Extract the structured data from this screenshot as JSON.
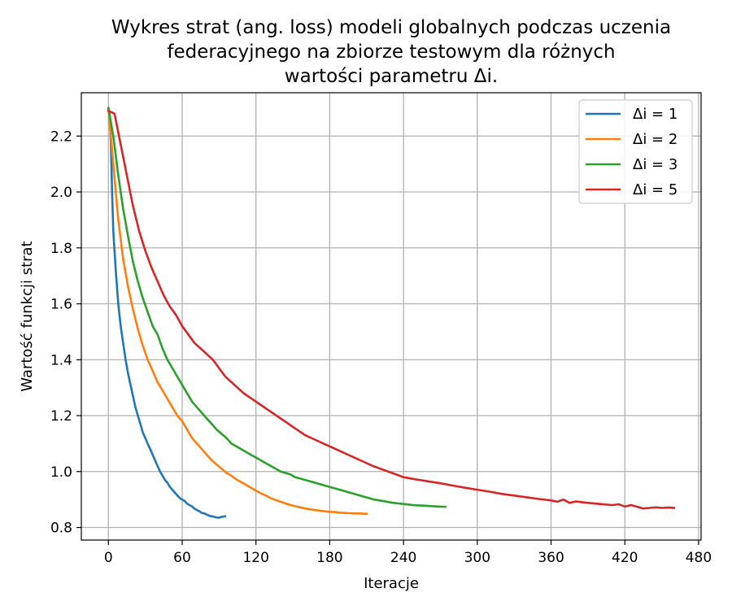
{
  "chart_data": {
    "type": "line",
    "title_lines": [
      "Wykres strat (ang. loss) modeli globalnych podczas uczenia",
      "federacyjnego na zbiorze testowym dla różnych",
      "wartości parametru Δi."
    ],
    "xlabel": "Iteracje",
    "ylabel": "Wartość funkcji strat",
    "xlim": [
      -22,
      482
    ],
    "ylim": [
      0.755,
      2.355
    ],
    "xticks": [
      0,
      60,
      120,
      180,
      240,
      300,
      360,
      420,
      480
    ],
    "yticks": [
      0.8,
      1.0,
      1.2,
      1.4,
      1.6,
      1.8,
      2.0,
      2.2
    ],
    "ytick_labels": [
      "0.8",
      "1.0",
      "1.2",
      "1.4",
      "1.6",
      "1.8",
      "2.0",
      "2.2"
    ],
    "grid": true,
    "legend_position": "top-right",
    "series": [
      {
        "name": "Δi = 1",
        "color": "#1f77b4",
        "points": [
          [
            0,
            2.3
          ],
          [
            1,
            2.28
          ],
          [
            2,
            2.18
          ],
          [
            3,
            2.0
          ],
          [
            4,
            1.86
          ],
          [
            6,
            1.72
          ],
          [
            8,
            1.6
          ],
          [
            10,
            1.52
          ],
          [
            12,
            1.46
          ],
          [
            14,
            1.4
          ],
          [
            16,
            1.35
          ],
          [
            18,
            1.31
          ],
          [
            20,
            1.27
          ],
          [
            22,
            1.23
          ],
          [
            24,
            1.2
          ],
          [
            26,
            1.17
          ],
          [
            28,
            1.14
          ],
          [
            30,
            1.12
          ],
          [
            32,
            1.1
          ],
          [
            34,
            1.08
          ],
          [
            36,
            1.06
          ],
          [
            38,
            1.04
          ],
          [
            40,
            1.02
          ],
          [
            42,
            1.0
          ],
          [
            44,
            0.985
          ],
          [
            46,
            0.97
          ],
          [
            48,
            0.96
          ],
          [
            50,
            0.945
          ],
          [
            52,
            0.935
          ],
          [
            54,
            0.925
          ],
          [
            56,
            0.915
          ],
          [
            58,
            0.905
          ],
          [
            60,
            0.9
          ],
          [
            62,
            0.895
          ],
          [
            64,
            0.885
          ],
          [
            66,
            0.88
          ],
          [
            68,
            0.875
          ],
          [
            70,
            0.868
          ],
          [
            72,
            0.862
          ],
          [
            74,
            0.858
          ],
          [
            76,
            0.852
          ],
          [
            78,
            0.85
          ],
          [
            80,
            0.846
          ],
          [
            82,
            0.842
          ],
          [
            84,
            0.84
          ],
          [
            86,
            0.838
          ],
          [
            88,
            0.836
          ],
          [
            90,
            0.835
          ],
          [
            92,
            0.838
          ],
          [
            95,
            0.84
          ]
        ]
      },
      {
        "name": "Δi = 2",
        "color": "#ff7f0e",
        "points": [
          [
            0,
            2.3
          ],
          [
            4,
            2.1
          ],
          [
            8,
            1.9
          ],
          [
            12,
            1.76
          ],
          [
            16,
            1.66
          ],
          [
            20,
            1.58
          ],
          [
            24,
            1.51
          ],
          [
            28,
            1.45
          ],
          [
            32,
            1.4
          ],
          [
            36,
            1.36
          ],
          [
            40,
            1.32
          ],
          [
            44,
            1.29
          ],
          [
            48,
            1.26
          ],
          [
            52,
            1.23
          ],
          [
            56,
            1.2
          ],
          [
            60,
            1.18
          ],
          [
            64,
            1.15
          ],
          [
            68,
            1.12
          ],
          [
            72,
            1.1
          ],
          [
            76,
            1.08
          ],
          [
            80,
            1.06
          ],
          [
            84,
            1.04
          ],
          [
            88,
            1.025
          ],
          [
            92,
            1.01
          ],
          [
            96,
            0.995
          ],
          [
            100,
            0.985
          ],
          [
            104,
            0.972
          ],
          [
            108,
            0.962
          ],
          [
            112,
            0.952
          ],
          [
            116,
            0.942
          ],
          [
            120,
            0.932
          ],
          [
            124,
            0.922
          ],
          [
            128,
            0.914
          ],
          [
            132,
            0.905
          ],
          [
            136,
            0.898
          ],
          [
            140,
            0.892
          ],
          [
            144,
            0.886
          ],
          [
            148,
            0.88
          ],
          [
            152,
            0.876
          ],
          [
            156,
            0.872
          ],
          [
            160,
            0.868
          ],
          [
            164,
            0.865
          ],
          [
            168,
            0.862
          ],
          [
            172,
            0.86
          ],
          [
            176,
            0.858
          ],
          [
            180,
            0.856
          ],
          [
            184,
            0.855
          ],
          [
            188,
            0.853
          ],
          [
            192,
            0.852
          ],
          [
            196,
            0.851
          ],
          [
            200,
            0.85
          ],
          [
            204,
            0.85
          ],
          [
            208,
            0.849
          ],
          [
            210,
            0.849
          ]
        ]
      },
      {
        "name": "Δi = 3",
        "color": "#2ca02c",
        "points": [
          [
            0,
            2.3
          ],
          [
            4,
            2.2
          ],
          [
            8,
            2.06
          ],
          [
            12,
            1.94
          ],
          [
            16,
            1.84
          ],
          [
            20,
            1.75
          ],
          [
            24,
            1.68
          ],
          [
            28,
            1.62
          ],
          [
            32,
            1.57
          ],
          [
            36,
            1.52
          ],
          [
            40,
            1.49
          ],
          [
            44,
            1.44
          ],
          [
            48,
            1.4
          ],
          [
            52,
            1.37
          ],
          [
            56,
            1.34
          ],
          [
            60,
            1.31
          ],
          [
            64,
            1.28
          ],
          [
            68,
            1.25
          ],
          [
            72,
            1.23
          ],
          [
            76,
            1.21
          ],
          [
            80,
            1.19
          ],
          [
            84,
            1.17
          ],
          [
            88,
            1.15
          ],
          [
            92,
            1.135
          ],
          [
            96,
            1.12
          ],
          [
            100,
            1.1
          ],
          [
            104,
            1.09
          ],
          [
            108,
            1.08
          ],
          [
            112,
            1.07
          ],
          [
            116,
            1.06
          ],
          [
            120,
            1.05
          ],
          [
            124,
            1.04
          ],
          [
            128,
            1.03
          ],
          [
            132,
            1.02
          ],
          [
            136,
            1.01
          ],
          [
            140,
            1.0
          ],
          [
            144,
            0.995
          ],
          [
            148,
            0.99
          ],
          [
            152,
            0.98
          ],
          [
            156,
            0.975
          ],
          [
            160,
            0.97
          ],
          [
            164,
            0.965
          ],
          [
            168,
            0.96
          ],
          [
            172,
            0.955
          ],
          [
            176,
            0.95
          ],
          [
            180,
            0.945
          ],
          [
            184,
            0.94
          ],
          [
            188,
            0.935
          ],
          [
            192,
            0.93
          ],
          [
            196,
            0.925
          ],
          [
            200,
            0.92
          ],
          [
            204,
            0.915
          ],
          [
            208,
            0.91
          ],
          [
            212,
            0.905
          ],
          [
            216,
            0.9
          ],
          [
            220,
            0.897
          ],
          [
            224,
            0.894
          ],
          [
            228,
            0.891
          ],
          [
            232,
            0.888
          ],
          [
            236,
            0.886
          ],
          [
            240,
            0.884
          ],
          [
            244,
            0.882
          ],
          [
            248,
            0.88
          ],
          [
            252,
            0.879
          ],
          [
            256,
            0.878
          ],
          [
            260,
            0.877
          ],
          [
            264,
            0.876
          ],
          [
            268,
            0.875
          ],
          [
            272,
            0.874
          ],
          [
            274,
            0.874
          ]
        ]
      },
      {
        "name": "Δi = 5",
        "color": "#d62728",
        "points": [
          [
            0,
            2.29
          ],
          [
            5,
            2.28
          ],
          [
            10,
            2.17
          ],
          [
            15,
            2.06
          ],
          [
            20,
            1.95
          ],
          [
            25,
            1.86
          ],
          [
            30,
            1.79
          ],
          [
            35,
            1.73
          ],
          [
            40,
            1.68
          ],
          [
            45,
            1.63
          ],
          [
            50,
            1.59
          ],
          [
            55,
            1.56
          ],
          [
            60,
            1.52
          ],
          [
            65,
            1.49
          ],
          [
            70,
            1.46
          ],
          [
            75,
            1.44
          ],
          [
            80,
            1.42
          ],
          [
            85,
            1.4
          ],
          [
            90,
            1.37
          ],
          [
            95,
            1.34
          ],
          [
            100,
            1.32
          ],
          [
            105,
            1.3
          ],
          [
            110,
            1.28
          ],
          [
            115,
            1.265
          ],
          [
            120,
            1.25
          ],
          [
            125,
            1.235
          ],
          [
            130,
            1.22
          ],
          [
            135,
            1.205
          ],
          [
            140,
            1.19
          ],
          [
            145,
            1.175
          ],
          [
            150,
            1.16
          ],
          [
            155,
            1.145
          ],
          [
            160,
            1.13
          ],
          [
            165,
            1.12
          ],
          [
            170,
            1.11
          ],
          [
            175,
            1.1
          ],
          [
            180,
            1.09
          ],
          [
            185,
            1.08
          ],
          [
            190,
            1.07
          ],
          [
            195,
            1.06
          ],
          [
            200,
            1.05
          ],
          [
            205,
            1.04
          ],
          [
            210,
            1.03
          ],
          [
            215,
            1.02
          ],
          [
            220,
            1.012
          ],
          [
            225,
            1.004
          ],
          [
            230,
            0.996
          ],
          [
            235,
            0.988
          ],
          [
            240,
            0.98
          ],
          [
            250,
            0.972
          ],
          [
            260,
            0.965
          ],
          [
            270,
            0.958
          ],
          [
            280,
            0.95
          ],
          [
            290,
            0.942
          ],
          [
            300,
            0.935
          ],
          [
            310,
            0.928
          ],
          [
            320,
            0.92
          ],
          [
            330,
            0.914
          ],
          [
            340,
            0.908
          ],
          [
            350,
            0.902
          ],
          [
            360,
            0.897
          ],
          [
            365,
            0.892
          ],
          [
            370,
            0.9
          ],
          [
            375,
            0.888
          ],
          [
            380,
            0.893
          ],
          [
            390,
            0.888
          ],
          [
            400,
            0.884
          ],
          [
            410,
            0.88
          ],
          [
            415,
            0.883
          ],
          [
            420,
            0.875
          ],
          [
            425,
            0.88
          ],
          [
            430,
            0.874
          ],
          [
            435,
            0.868
          ],
          [
            440,
            0.87
          ],
          [
            445,
            0.872
          ],
          [
            450,
            0.87
          ],
          [
            455,
            0.871
          ],
          [
            460,
            0.87
          ]
        ]
      }
    ]
  }
}
